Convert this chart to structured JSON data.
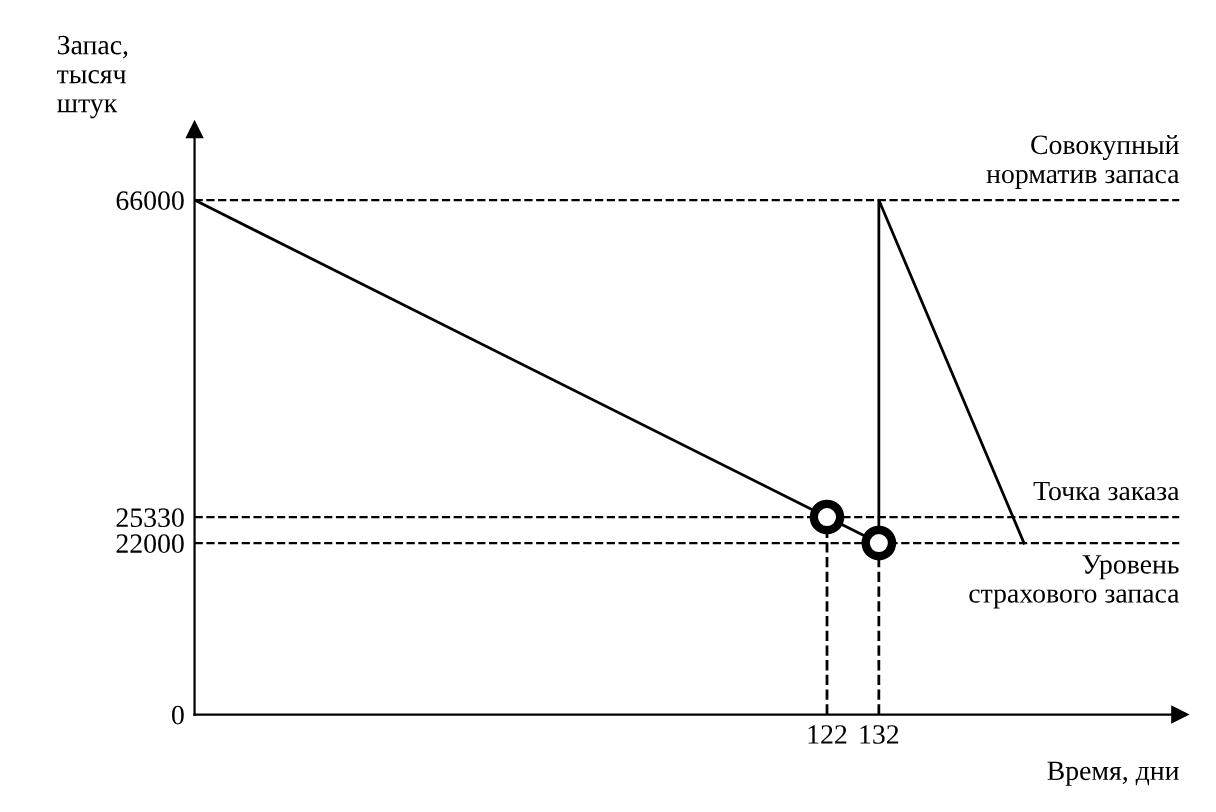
{
  "chart_data": {
    "type": "line",
    "xlabel": "Время, дни",
    "ylabel": "Запас,\nтысяч\nштук",
    "xlim": [
      0,
      190
    ],
    "ylim": [
      0,
      75000
    ],
    "xticks": [
      122,
      132
    ],
    "yticks": [
      0,
      22000,
      25330,
      66000
    ],
    "grid": false,
    "series": [
      {
        "color": "#000000",
        "line_style": "solid",
        "marker": "none",
        "x": [
          0,
          132,
          132,
          160
        ],
        "values": [
          66000,
          22000,
          66000,
          22000
        ]
      },
      {
        "color": "#000000",
        "line_style": "dashed",
        "marker": "none",
        "x": [
          122,
          122
        ],
        "values": [
          0,
          25330
        ]
      },
      {
        "color": "#000000",
        "line_style": "dashed",
        "marker": "none",
        "x": [
          132,
          132
        ],
        "values": [
          0,
          22000
        ]
      },
      {
        "type": "scatter",
        "color": "#000000",
        "marker": "circle",
        "x": [
          122,
          132
        ],
        "values": [
          25330,
          22000
        ]
      }
    ],
    "ref_lines": [
      {
        "axis": "y",
        "value": 66000,
        "label": "Совокупный\nнорматив запаса",
        "color": "#000000",
        "line_style": "dashed"
      },
      {
        "axis": "y",
        "value": 25330,
        "label": "Точка заказа",
        "color": "#000000",
        "line_style": "dashed"
      },
      {
        "axis": "y",
        "value": 22000,
        "label": "Уровень\nстрахового запаса",
        "color": "#000000",
        "line_style": "dashed"
      }
    ]
  }
}
